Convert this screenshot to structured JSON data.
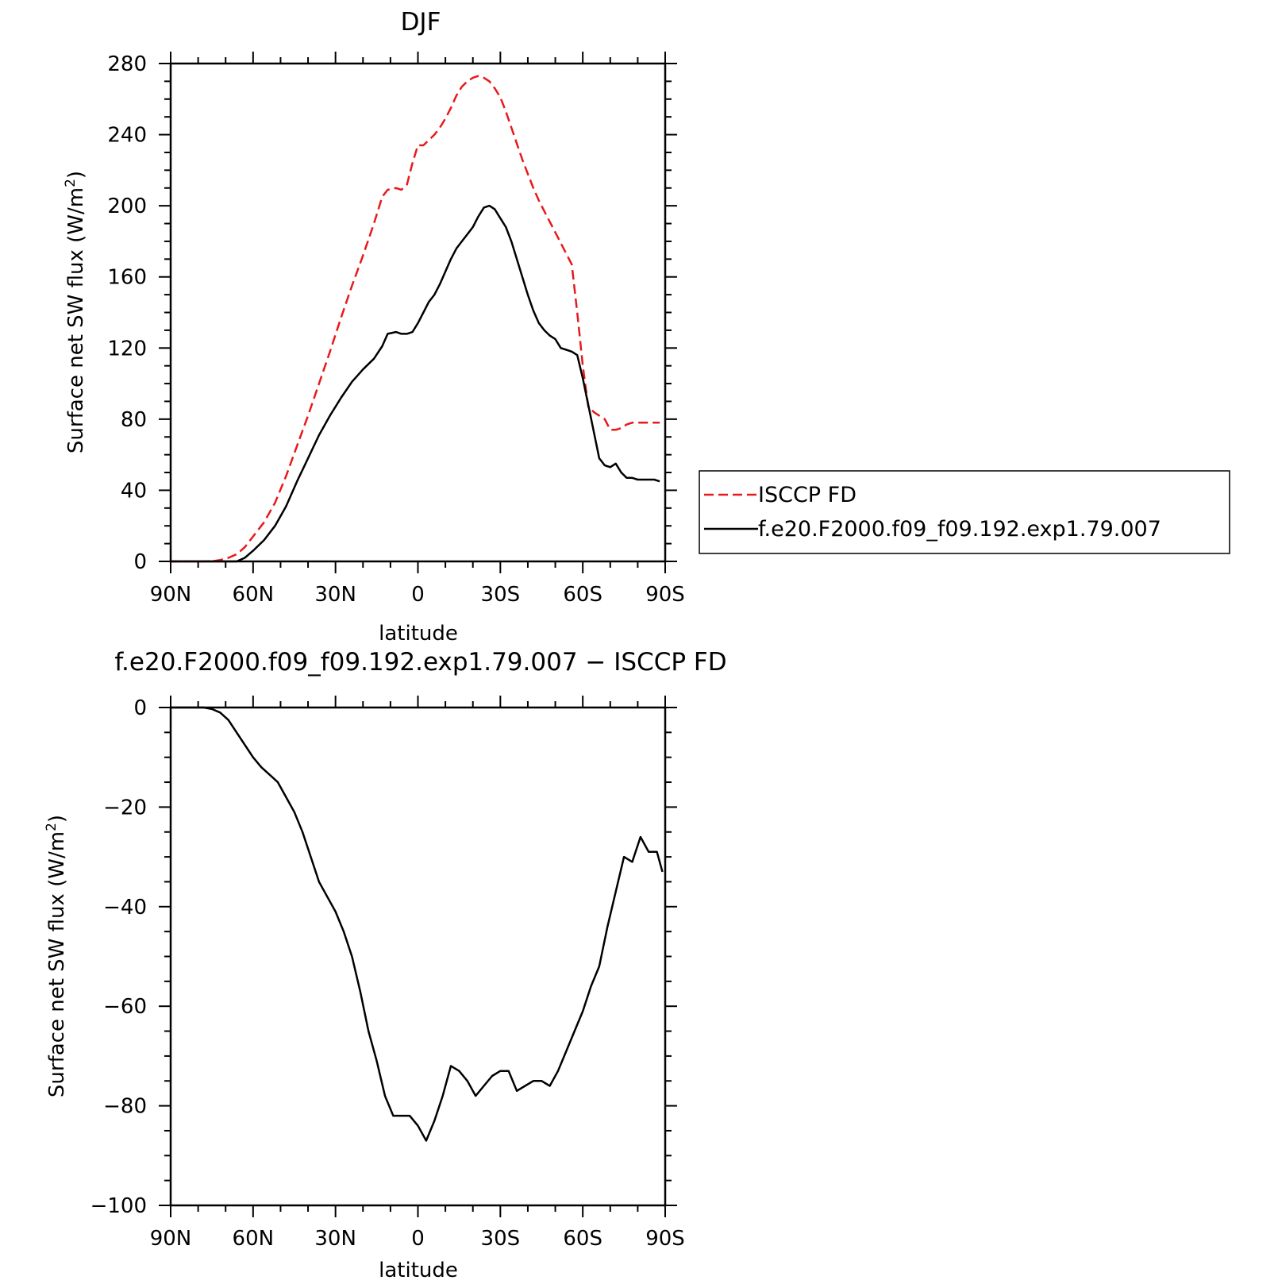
{
  "chart_data": [
    {
      "type": "line",
      "title": "DJF",
      "xlabel": "latitude",
      "ylabel": "Surface net SW flux (W/m",
      "ylabel_sup": "2",
      "ylabel_end": ")",
      "xlim": [
        90,
        -90
      ],
      "ylim": [
        0,
        280
      ],
      "xticks": [
        90,
        60,
        30,
        0,
        -30,
        -60,
        -90
      ],
      "xtick_labels": [
        "90N",
        "60N",
        "30N",
        "0",
        "30S",
        "60S",
        "90S"
      ],
      "yticks": [
        0,
        40,
        80,
        120,
        160,
        200,
        240,
        280
      ],
      "ytick_labels": [
        "0",
        "40",
        "80",
        "120",
        "160",
        "200",
        "240",
        "280"
      ],
      "legend": {
        "position": "right-middle",
        "entries": [
          "ISCCP FD",
          "f.e20.F2000.f09_f09.192.exp1.79.007"
        ]
      },
      "series": [
        {
          "name": "ISCCP FD",
          "color": "#e8191c",
          "dash": "dashed",
          "x": [
            90,
            84,
            78,
            74,
            72,
            69,
            66,
            63,
            60,
            56,
            52,
            48,
            44,
            40,
            36,
            32,
            28,
            24,
            20,
            16,
            13,
            11,
            8,
            6,
            4,
            2,
            0,
            -2,
            -4,
            -6,
            -8,
            -10,
            -12,
            -14,
            -16,
            -18,
            -20,
            -22,
            -24,
            -26,
            -28,
            -30,
            -32,
            -34,
            -36,
            -38,
            -40,
            -42,
            -44,
            -46,
            -48,
            -50,
            -52,
            -54,
            -56,
            -58,
            -60,
            -62,
            -64,
            -66,
            -68,
            -70,
            -72,
            -74,
            -76,
            -78,
            -80,
            -82,
            -84,
            -86,
            -88
          ],
          "y": [
            0,
            0,
            0,
            0.3,
            0.8,
            2,
            4,
            8,
            14,
            22,
            33,
            48,
            65,
            82,
            100,
            118,
            137,
            155,
            172,
            190,
            205,
            209,
            210,
            209,
            212,
            224,
            234,
            234,
            237,
            240,
            244,
            249,
            255,
            262,
            267,
            270,
            272,
            273,
            272,
            270,
            266,
            261,
            253,
            244,
            235,
            226,
            218,
            210,
            203,
            197,
            191,
            185,
            179,
            173,
            167,
            140,
            110,
            87,
            84,
            82,
            80,
            74,
            74,
            75,
            77,
            78,
            78,
            78,
            78,
            78,
            78
          ],
          "y_note": ""
        },
        {
          "name": "f.e20.F2000.f09_f09.192.exp1.79.007",
          "color": "#000000",
          "dash": "solid",
          "x": [
            90,
            84,
            78,
            74,
            70,
            66,
            63,
            60,
            56,
            52,
            48,
            44,
            40,
            36,
            32,
            28,
            24,
            20,
            16,
            13,
            11,
            8,
            6,
            4,
            2,
            0,
            -2,
            -4,
            -6,
            -8,
            -10,
            -12,
            -14,
            -16,
            -18,
            -20,
            -22,
            -24,
            -26,
            -28,
            -30,
            -32,
            -34,
            -36,
            -38,
            -40,
            -42,
            -44,
            -46,
            -48,
            -50,
            -52,
            -54,
            -56,
            -58,
            -60,
            -62,
            -64,
            -66,
            -68,
            -70,
            -72,
            -74,
            -76,
            -78,
            -80,
            -82,
            -84,
            -86,
            -88
          ],
          "y": [
            0,
            0,
            0,
            0,
            0,
            0,
            2,
            6,
            12,
            20,
            31,
            45,
            58,
            71,
            82,
            92,
            101,
            108,
            114,
            121,
            128,
            129,
            128,
            128,
            129,
            134,
            140,
            146,
            150,
            156,
            163,
            170,
            176,
            180,
            184,
            188,
            194,
            199,
            200,
            198,
            193,
            188,
            180,
            170,
            160,
            150,
            141,
            134,
            130,
            127,
            125,
            120,
            119,
            118,
            116,
            103,
            88,
            73,
            58,
            54,
            53,
            55,
            50,
            47,
            47,
            46,
            46,
            46,
            46,
            45
          ]
        }
      ]
    },
    {
      "type": "line",
      "title": "f.e20.F2000.f09_f09.192.exp1.79.007 − ISCCP FD",
      "xlabel": "latitude",
      "ylabel": "Surface net SW flux (W/m",
      "ylabel_sup": "2",
      "ylabel_end": ")",
      "xlim": [
        90,
        -90
      ],
      "ylim": [
        -100,
        0
      ],
      "xticks": [
        90,
        60,
        30,
        0,
        -30,
        -60,
        -90
      ],
      "xtick_labels": [
        "90N",
        "60N",
        "30N",
        "0",
        "30S",
        "60S",
        "90S"
      ],
      "yticks": [
        0,
        -20,
        -40,
        -60,
        -80,
        -100
      ],
      "ytick_labels": [
        "0",
        "−20",
        "−40",
        "−60",
        "−80",
        "−100"
      ],
      "series": [
        {
          "color": "#000000",
          "dash": "solid",
          "x": [
            90,
            84,
            78,
            75,
            72,
            69,
            66,
            63,
            60,
            57,
            54,
            51,
            48,
            45,
            42,
            39,
            36,
            33,
            30,
            27,
            24,
            21,
            18,
            15,
            12,
            9,
            6,
            3,
            0,
            -3,
            -6,
            -9,
            -12,
            -15,
            -18,
            -21,
            -24,
            -27,
            -30,
            -33,
            -36,
            -39,
            -42,
            -45,
            -48,
            -51,
            -54,
            -57,
            -60,
            -63,
            -66,
            -69,
            -72,
            -75,
            -78,
            -81,
            -84,
            -87,
            -89
          ],
          "y": [
            0,
            0,
            0,
            -0.3,
            -1,
            -2.5,
            -5,
            -7.5,
            -10,
            -12,
            -13.5,
            -15,
            -18,
            -21,
            -25,
            -30,
            -35,
            -38,
            -41,
            -45,
            -50,
            -57,
            -65,
            -71,
            -78,
            -82,
            -82,
            -82,
            -84,
            -87,
            -83,
            -78,
            -72,
            -73,
            -75,
            -78,
            -76,
            -74,
            -73,
            -73,
            -77,
            -76,
            -75,
            -75,
            -76,
            -73,
            -69,
            -65,
            -61,
            -56,
            -52,
            -44,
            -37,
            -30,
            -31,
            -26,
            -29,
            -29,
            -33
          ]
        }
      ]
    }
  ]
}
